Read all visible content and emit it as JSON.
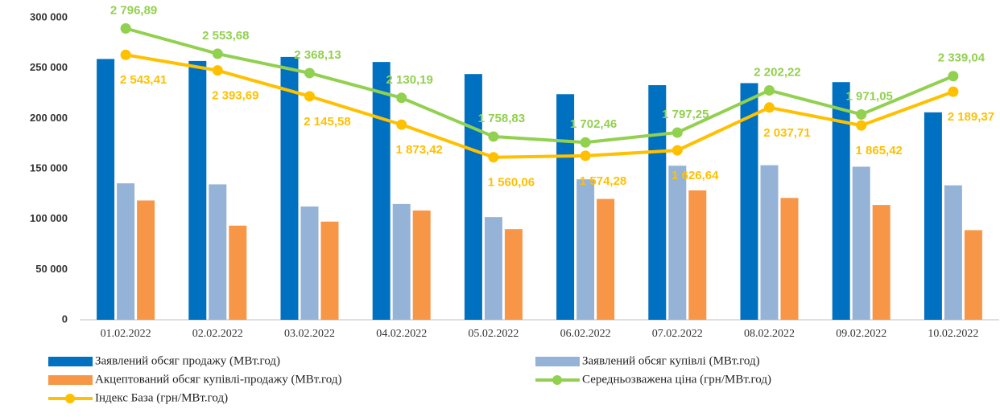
{
  "chart_data": {
    "type": "bar_line",
    "categories": [
      "01.02.2022",
      "02.02.2022",
      "03.02.2022",
      "04.02.2022",
      "05.02.2022",
      "06.02.2022",
      "07.02.2022",
      "08.02.2022",
      "09.02.2022",
      "10.02.2022"
    ],
    "ylim": [
      0,
      300000
    ],
    "yticks": [
      0,
      {
        "value": 50000,
        "label": "50 000"
      },
      {
        "value": 100000,
        "label": "100 000"
      },
      {
        "value": 150000,
        "label": "150 000"
      },
      {
        "value": 200000,
        "label": "200 000"
      },
      {
        "value": 250000,
        "label": "250 000"
      },
      {
        "value": 300000,
        "label": "300 000"
      }
    ],
    "y2lim": [
      0,
      2900
    ],
    "series": [
      {
        "name": "Заявлений обсяг продажу (МВт.год)",
        "type": "bar",
        "color": "#0070c0",
        "values": [
          259000,
          257000,
          261000,
          256000,
          244000,
          224000,
          233000,
          235000,
          236000,
          206000
        ]
      },
      {
        "name": "Заявлений обсяг купівлі (МВт.год)",
        "type": "bar",
        "color": "#95b3d7",
        "values": [
          135500,
          134500,
          112500,
          115000,
          102000,
          139500,
          153000,
          153500,
          152000,
          133500
        ]
      },
      {
        "name": "Акцептований обсяг купівлі-продажу (МВт.год)",
        "type": "bar",
        "color": "#f79646",
        "values": [
          118500,
          93500,
          97500,
          108500,
          90000,
          120000,
          128500,
          121000,
          114000,
          89000
        ]
      },
      {
        "name": "Середньозважена ціна (грн/МВт.год)",
        "type": "line",
        "axis": "y2",
        "color": "#92d050",
        "values": [
          2796.89,
          2553.68,
          2368.13,
          2130.19,
          1758.83,
          1702.46,
          1797.25,
          2202.22,
          1971.05,
          2339.04
        ],
        "value_labels": [
          "2 796,89",
          "2 553,68",
          "2 368,13",
          "2 130,19",
          "1 758,83",
          "1 702,46",
          "1 797,25",
          "2 202,22",
          "1 971,05",
          "2 339,04"
        ]
      },
      {
        "name": "Індекс База (грн/МВт.год)",
        "type": "line",
        "axis": "y2",
        "color": "#ffc000",
        "values": [
          2543.41,
          2393.69,
          2145.58,
          1873.42,
          1560.06,
          1574.28,
          1626.64,
          2037.71,
          1865.42,
          2189.37
        ],
        "value_labels": [
          "2 543,41",
          "2 393,69",
          "2 145,58",
          "1 873,42",
          "1 560,06",
          "1 574,28",
          "1 626,64",
          "2 037,71",
          "1 865,42",
          "2 189,37"
        ]
      }
    ]
  }
}
